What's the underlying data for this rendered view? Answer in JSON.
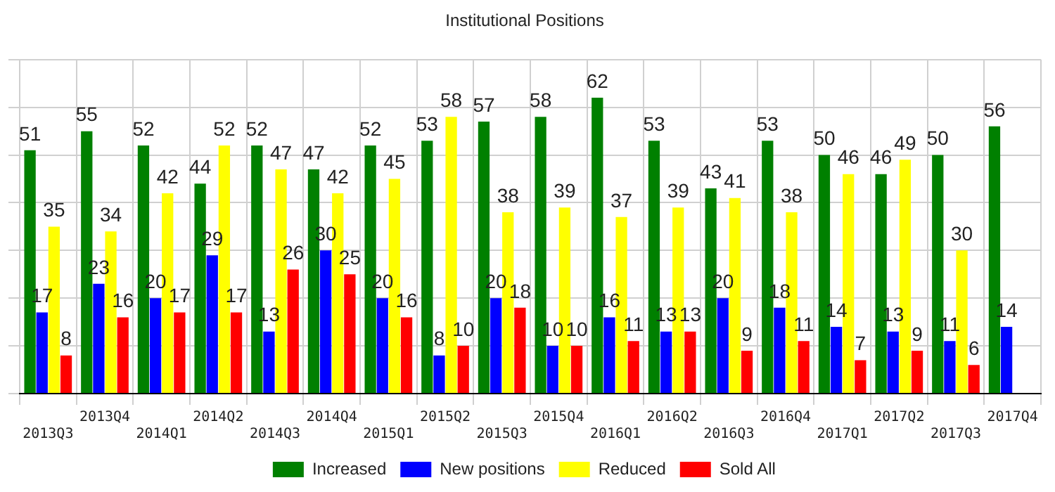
{
  "chart_data": {
    "type": "bar",
    "title": "Institutional Positions",
    "categories": [
      "2013Q3",
      "2013Q4",
      "2014Q1",
      "2014Q2",
      "2014Q3",
      "2014Q4",
      "2015Q1",
      "2015Q2",
      "2015Q3",
      "2015Q4",
      "2016Q1",
      "2016Q2",
      "2016Q3",
      "2016Q4",
      "2017Q1",
      "2017Q2",
      "2017Q3",
      "2017Q4"
    ],
    "series": [
      {
        "name": "Increased",
        "color": "#008000",
        "values": [
          51,
          55,
          52,
          44,
          52,
          47,
          52,
          53,
          57,
          58,
          62,
          53,
          43,
          53,
          50,
          46,
          50,
          56
        ]
      },
      {
        "name": "New positions",
        "color": "#0000ff",
        "values": [
          17,
          23,
          20,
          29,
          13,
          30,
          20,
          8,
          20,
          10,
          16,
          13,
          20,
          18,
          14,
          13,
          11,
          14
        ]
      },
      {
        "name": "Reduced",
        "color": "#ffff00",
        "values": [
          35,
          34,
          42,
          52,
          47,
          42,
          45,
          58,
          38,
          39,
          37,
          39,
          41,
          38,
          46,
          49,
          30,
          null
        ]
      },
      {
        "name": "Sold All",
        "color": "#ff0000",
        "values": [
          8,
          16,
          17,
          17,
          26,
          25,
          16,
          10,
          18,
          10,
          11,
          13,
          9,
          11,
          7,
          9,
          6,
          null
        ]
      }
    ],
    "data_labels": true,
    "grid": true,
    "legend": "bottom"
  }
}
